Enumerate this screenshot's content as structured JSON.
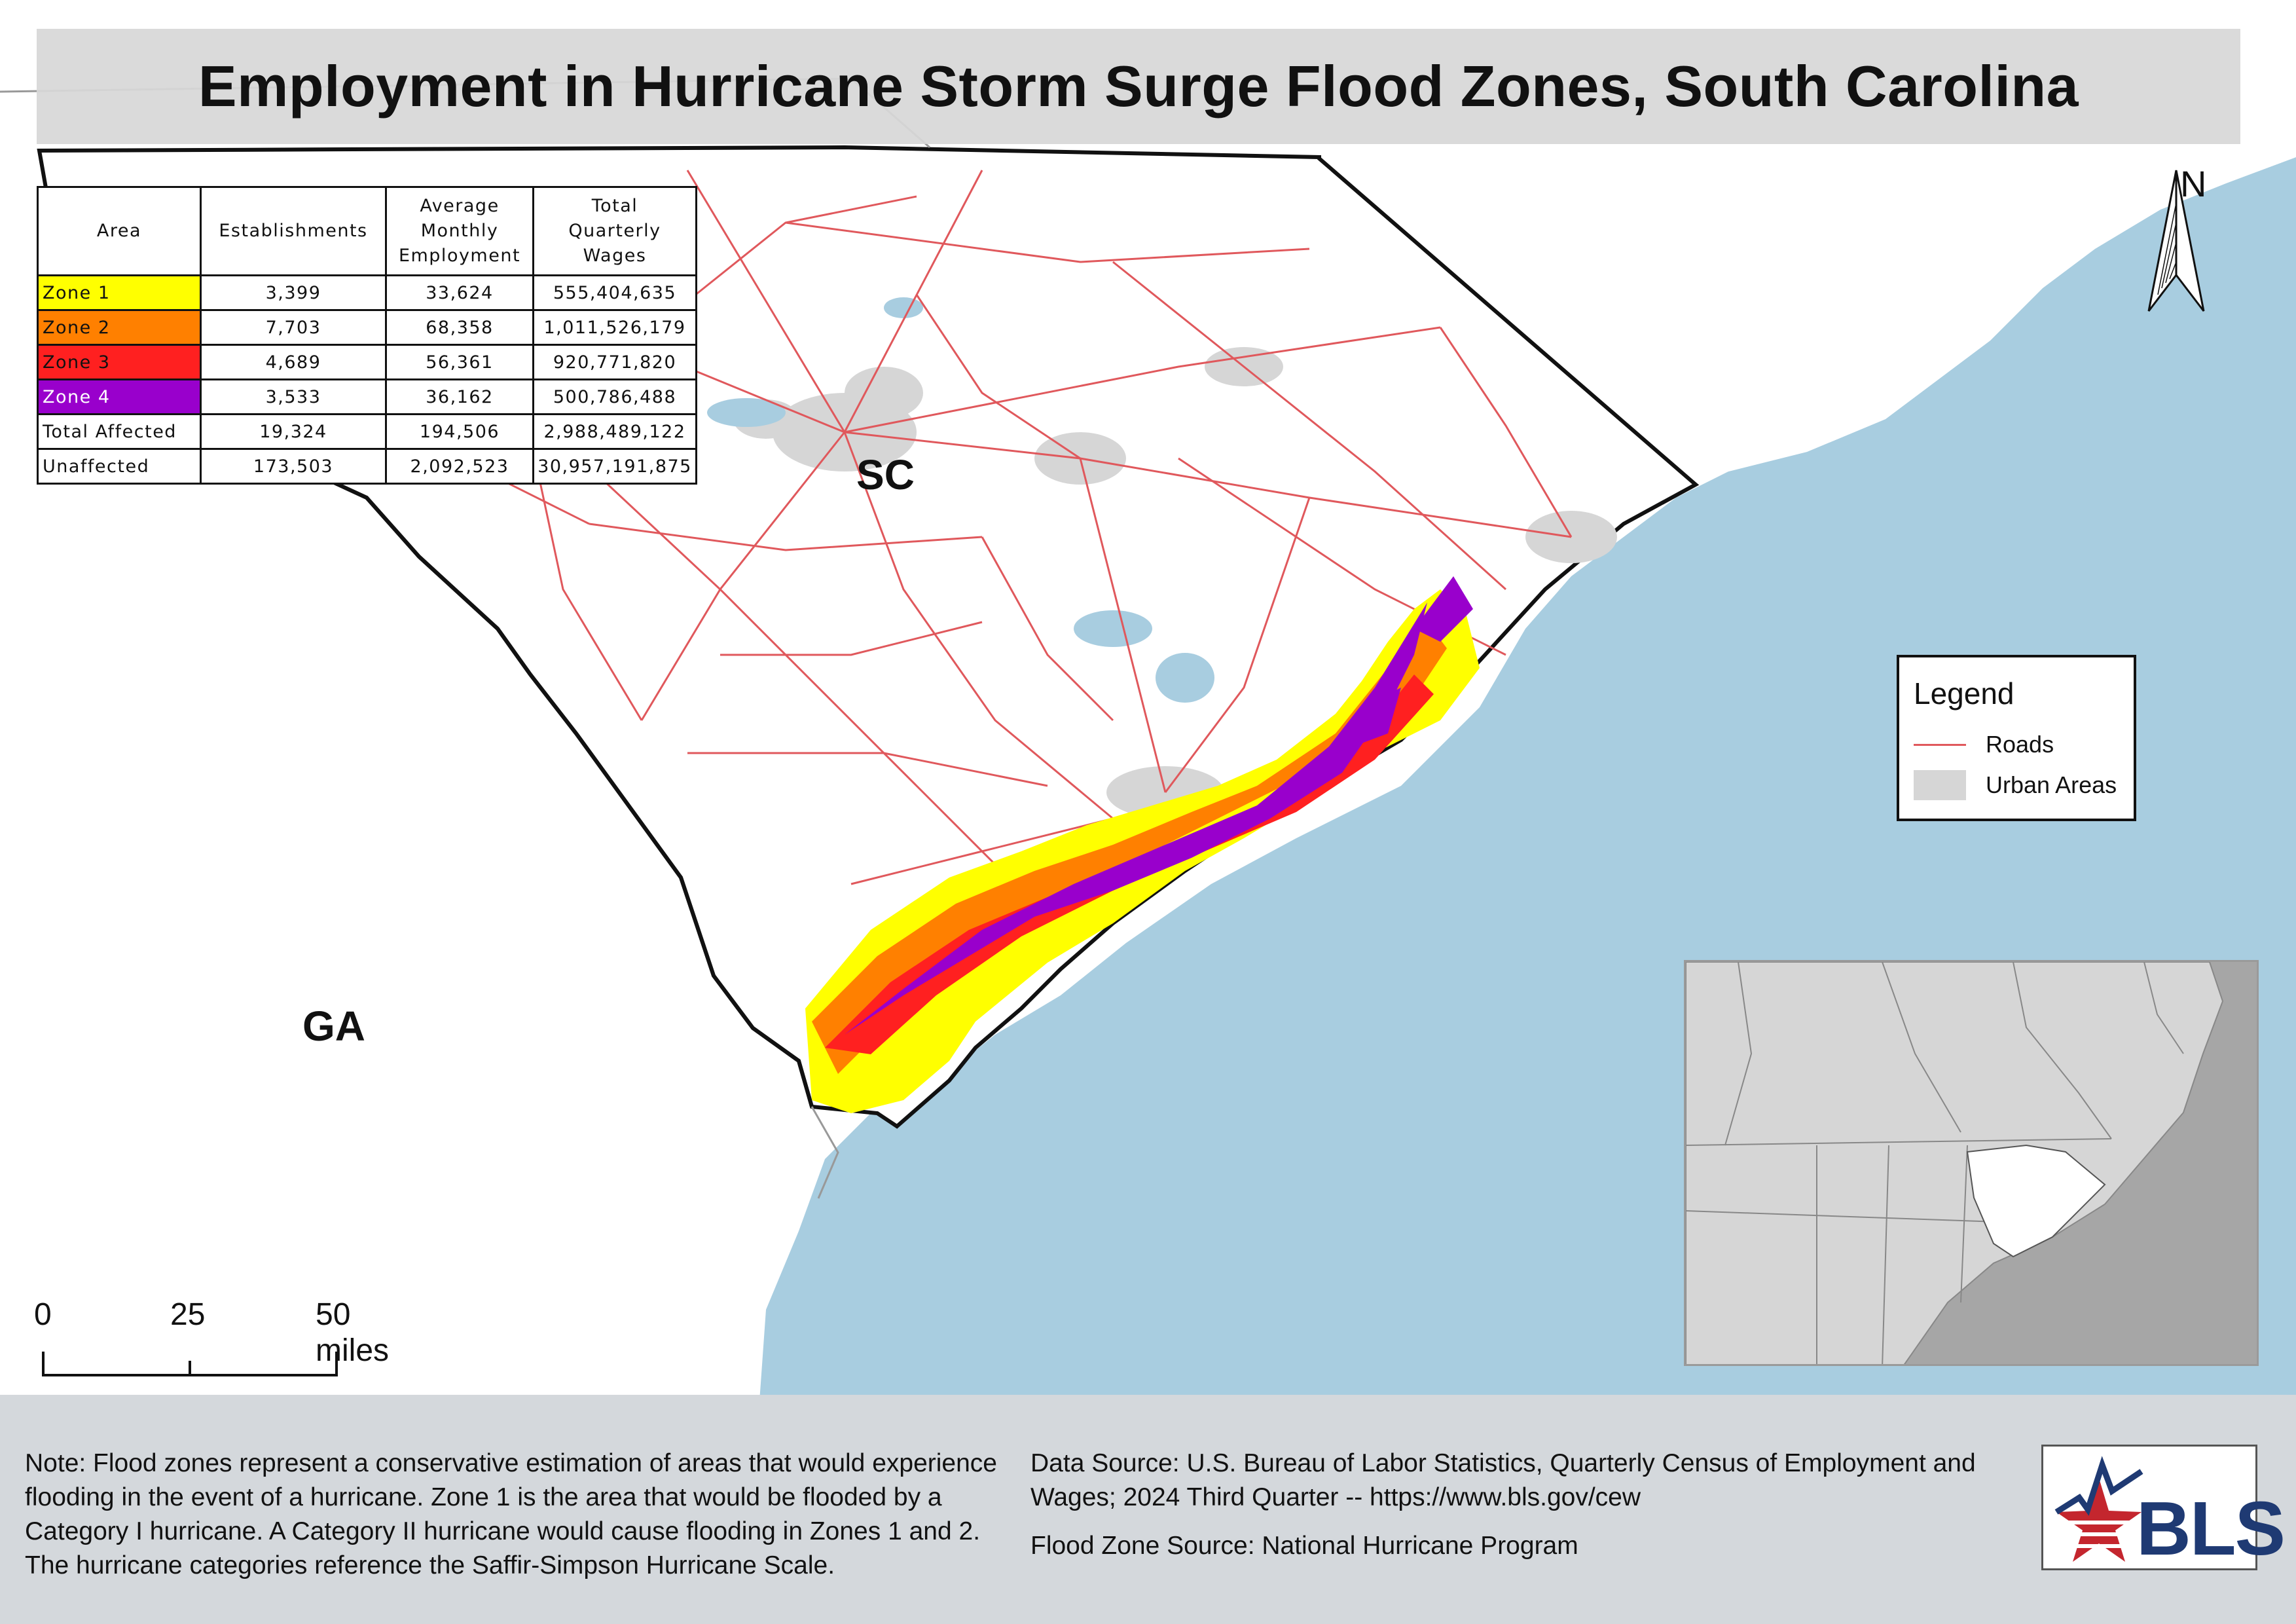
{
  "title": "Employment in Hurricane Storm Surge Flood Zones, South Carolina",
  "table": {
    "headers": {
      "area": "Area",
      "establishments": "Establishments",
      "employment": [
        "Average",
        "Monthly",
        "Employment"
      ],
      "wages": [
        "Total",
        "Quarterly",
        "Wages"
      ]
    },
    "rows": [
      {
        "area": "Zone 1",
        "establishments": "3,399",
        "employment": "33,624",
        "wages": "555,404,635",
        "color": "#ffff00",
        "text_color": "#111111"
      },
      {
        "area": "Zone 2",
        "establishments": "7,703",
        "employment": "68,358",
        "wages": "1,011,526,179",
        "color": "#ff8000",
        "text_color": "#111111"
      },
      {
        "area": "Zone 3",
        "establishments": "4,689",
        "employment": "56,361",
        "wages": "920,771,820",
        "color": "#ff2020",
        "text_color": "#111111"
      },
      {
        "area": "Zone 4",
        "establishments": "3,533",
        "employment": "36,162",
        "wages": "500,786,488",
        "color": "#9900cc",
        "text_color": "#ffffff"
      },
      {
        "area": "Total Affected",
        "establishments": "19,324",
        "employment": "194,506",
        "wages": "2,988,489,122",
        "color": "#ffffff",
        "text_color": "#111111"
      },
      {
        "area": "Unaffected",
        "establishments": "173,503",
        "employment": "2,092,523",
        "wages": "30,957,191,875",
        "color": "#ffffff",
        "text_color": "#111111"
      }
    ]
  },
  "labels": {
    "sc": "SC",
    "ga": "GA",
    "north": "N"
  },
  "legend": {
    "title": "Legend",
    "items": [
      {
        "label": "Roads",
        "color": "#e0585c",
        "kind": "line"
      },
      {
        "label": "Urban Areas",
        "color": "#d6d6d6",
        "kind": "fill"
      }
    ]
  },
  "scale_bar": {
    "ticks": [
      "0",
      "25",
      "50 miles"
    ]
  },
  "colors": {
    "ocean": "#a8cde0",
    "land": "#ffffff",
    "roads": "#e0585c",
    "urban": "#d6d6d6",
    "water": "#a8cde0",
    "zone1": "#ffff00",
    "zone2": "#ff8000",
    "zone3": "#ff2020",
    "zone4": "#9900cc"
  },
  "note": "Note: Flood zones represent a conservative estimation of areas that would experience flooding in the event of a hurricane. Zone 1 is the area that would be flooded by a Category I hurricane. A Category II hurricane would cause flooding in Zones 1 and 2. The hurricane categories reference the Saffir-Simpson Hurricane Scale.",
  "data_source": "Data Source: U.S. Bureau of Labor Statistics, Quarterly Census of Employment and Wages; 2024 Third Quarter -- https://www.bls.gov/cew",
  "flood_source": "Flood Zone Source: National Hurricane Program",
  "logo_text": "BLS"
}
